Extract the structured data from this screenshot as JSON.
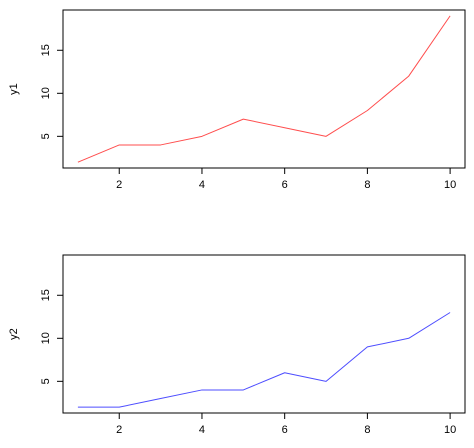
{
  "chart_data": [
    {
      "type": "line",
      "ylabel": "y1",
      "x": [
        1,
        2,
        3,
        4,
        5,
        6,
        7,
        8,
        9,
        10
      ],
      "series": [
        {
          "values": [
            2,
            4,
            4,
            5,
            7,
            6,
            5,
            8,
            12,
            19
          ],
          "color": "#ff4d4d"
        }
      ],
      "xlim": [
        0.64,
        10.36
      ],
      "ylim": [
        1.32,
        19.68
      ],
      "xticks": [
        2,
        4,
        6,
        8,
        10
      ],
      "yticks": [
        5,
        10,
        15
      ],
      "grid": false
    },
    {
      "type": "line",
      "ylabel": "y2",
      "x": [
        1,
        2,
        3,
        4,
        5,
        6,
        7,
        8,
        9,
        10
      ],
      "series": [
        {
          "values": [
            2,
            2,
            3,
            4,
            4,
            6,
            5,
            9,
            10,
            13
          ],
          "color": "#4d4dff"
        }
      ],
      "xlim": [
        0.64,
        10.36
      ],
      "ylim": [
        1.32,
        19.68
      ],
      "xticks": [
        2,
        4,
        6,
        8,
        10
      ],
      "yticks": [
        5,
        10,
        15
      ],
      "grid": false
    }
  ]
}
